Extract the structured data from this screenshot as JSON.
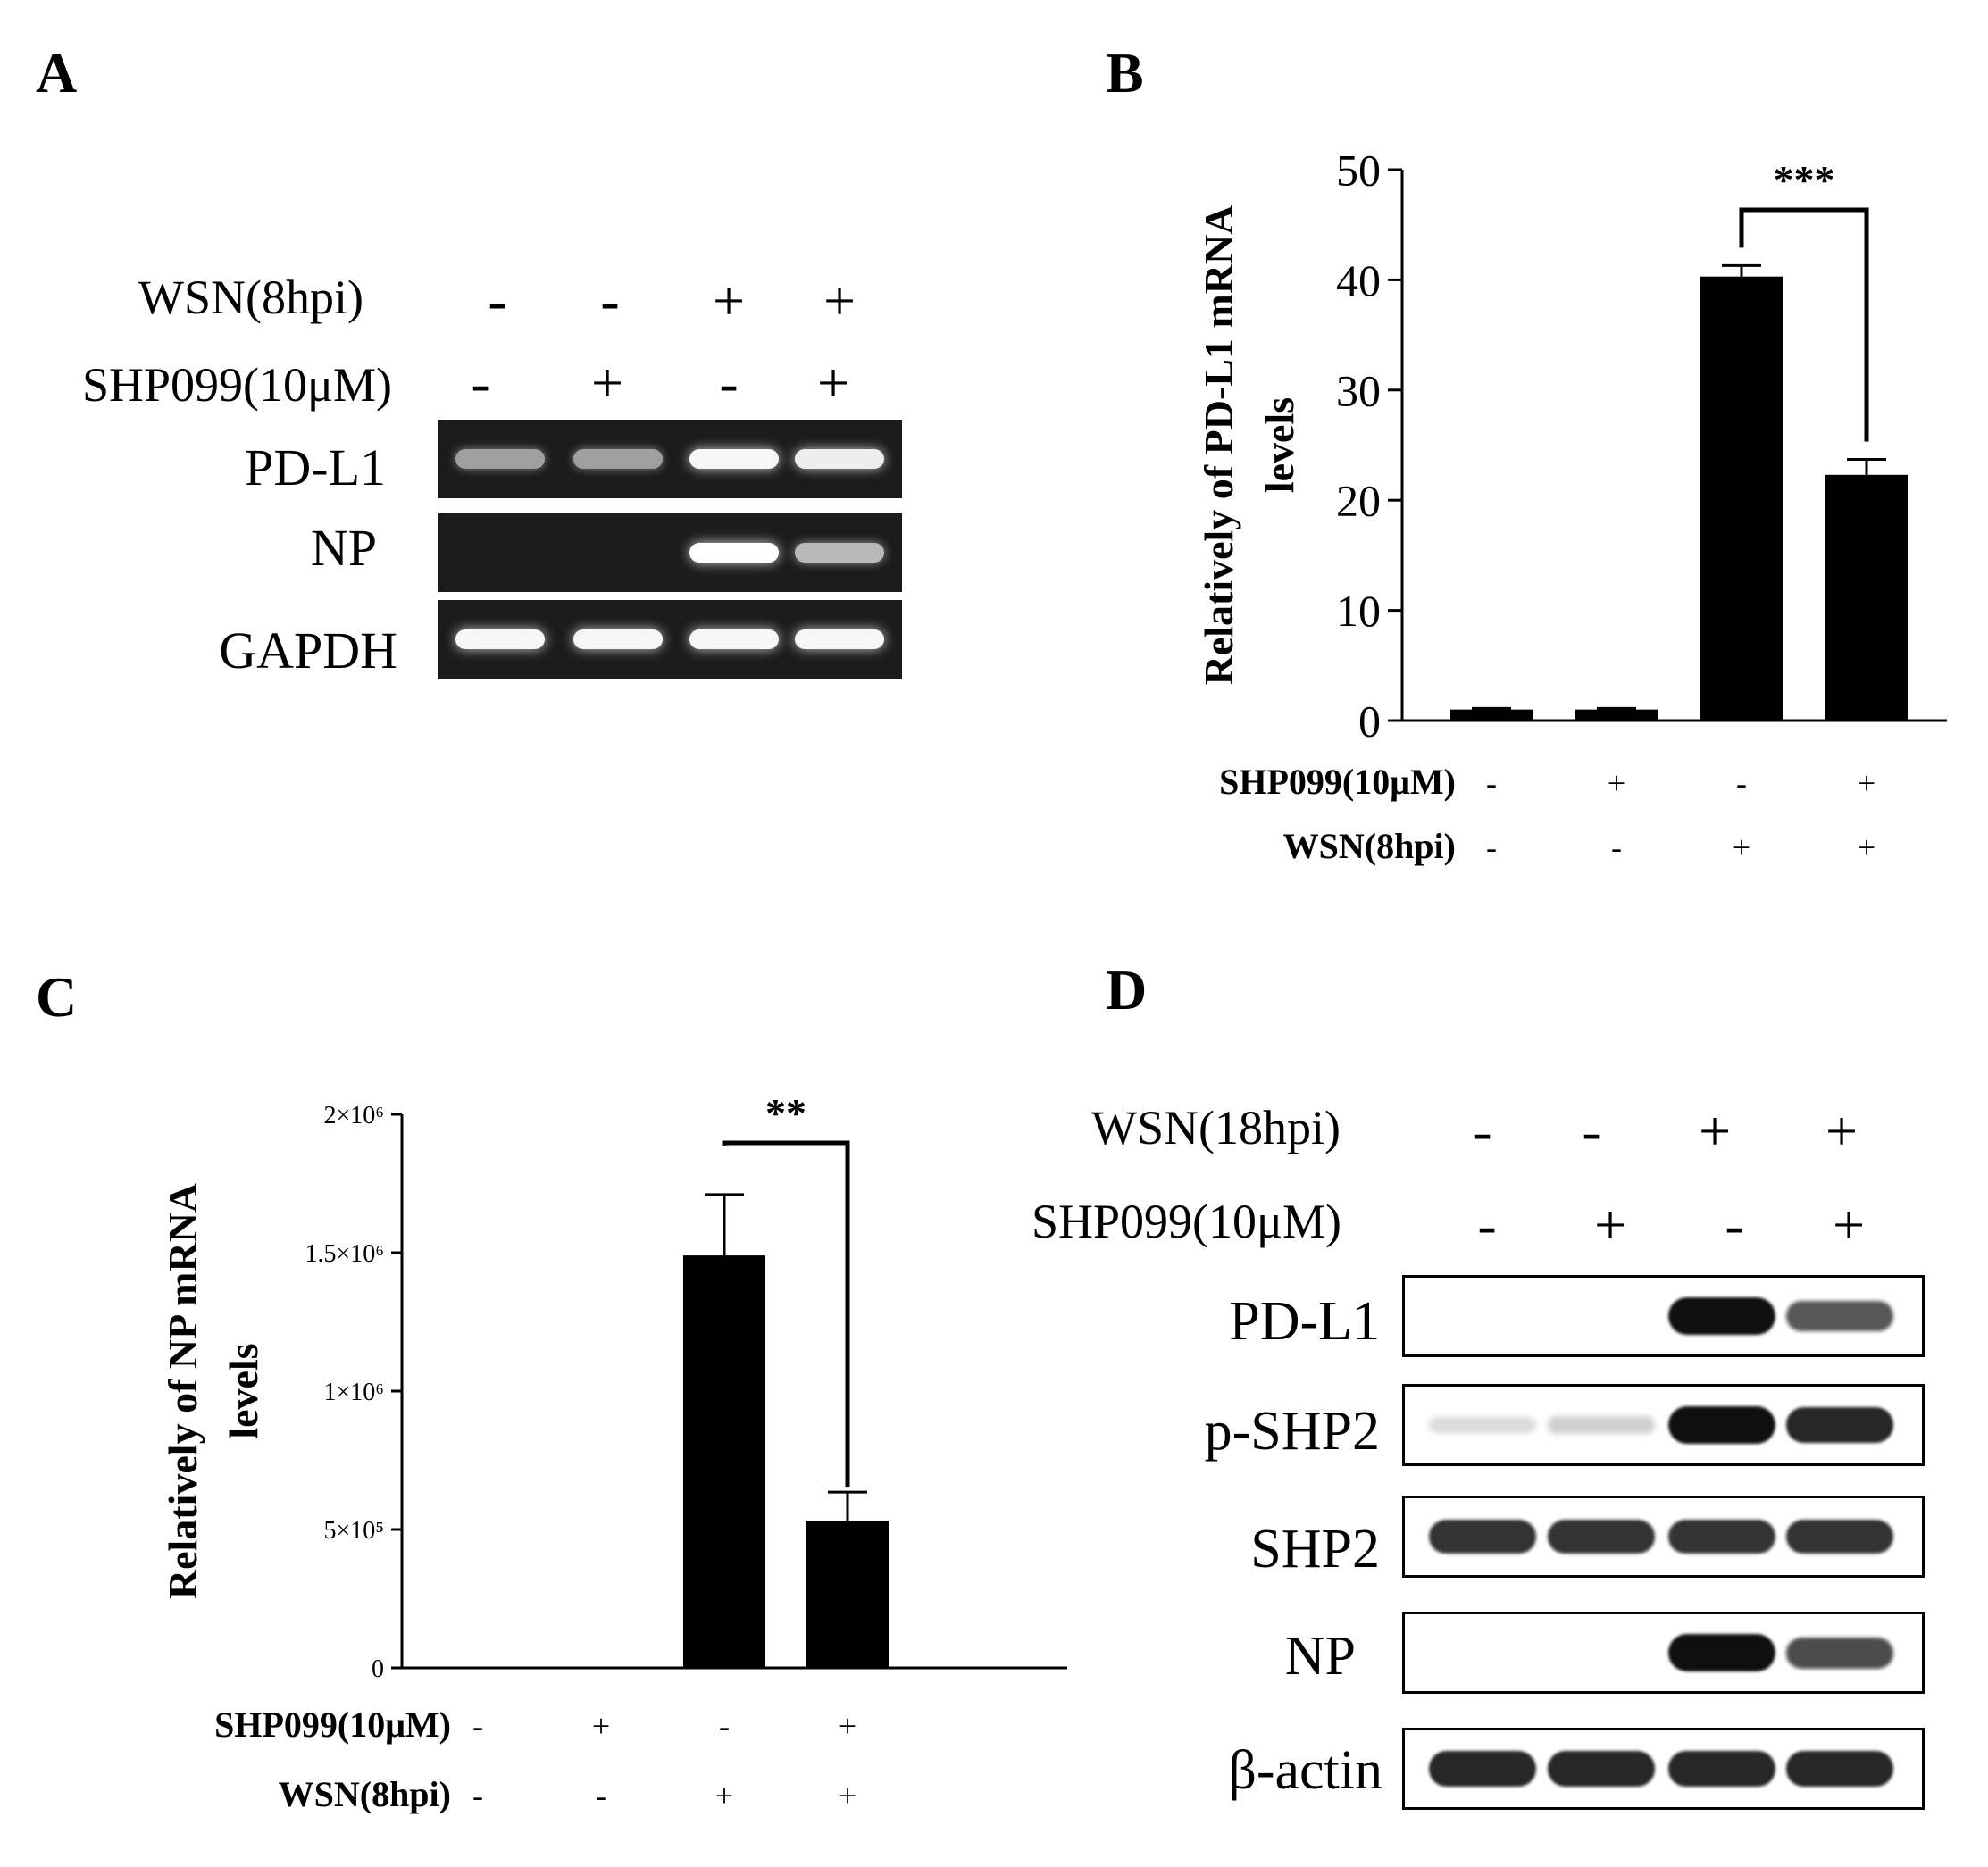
{
  "panels": {
    "A": "A",
    "B": "B",
    "C": "C",
    "D": "D"
  },
  "panel_a": {
    "conditions": [
      {
        "label": "WSN(8hpi)",
        "signs": [
          "-",
          "-",
          "+",
          "+"
        ]
      },
      {
        "label": "SHP099(10μM)",
        "signs": [
          "-",
          "+",
          "-",
          "+"
        ]
      }
    ],
    "rows": [
      {
        "label": "PD-L1",
        "intensity": [
          0.45,
          0.45,
          0.95,
          0.9
        ]
      },
      {
        "label": "NP",
        "intensity": [
          0,
          0,
          1.0,
          0.6
        ]
      },
      {
        "label": "GAPDH",
        "intensity": [
          0.95,
          0.95,
          0.95,
          0.95
        ]
      }
    ]
  },
  "panel_d": {
    "conditions": [
      {
        "label": "WSN(18hpi)",
        "signs": [
          "-",
          "-",
          "+",
          "+"
        ]
      },
      {
        "label": "SHP099(10μM)",
        "signs": [
          "-",
          "+",
          "-",
          "+"
        ]
      }
    ],
    "rows": [
      {
        "label": "PD-L1",
        "intensity": [
          0,
          0,
          1.0,
          0.7
        ]
      },
      {
        "label": "p-SHP2",
        "intensity": [
          0.15,
          0.2,
          1.0,
          0.9
        ]
      },
      {
        "label": "SHP2",
        "intensity": [
          0.85,
          0.85,
          0.85,
          0.85
        ]
      },
      {
        "label": "NP",
        "intensity": [
          0,
          0,
          1.0,
          0.75
        ]
      },
      {
        "label": "β-actin",
        "intensity": [
          0.9,
          0.9,
          0.9,
          0.9
        ]
      }
    ]
  },
  "chart_data": [
    {
      "panel": "B",
      "type": "bar",
      "ylabel": "Relatively of PD-L1 mRNA levels",
      "ylabel_lines": [
        "Relatively of PD-L1 mRNA",
        "levels"
      ],
      "ylim": [
        0,
        50
      ],
      "yticks": [
        0,
        10,
        20,
        30,
        40,
        50
      ],
      "ytick_labels": [
        "0",
        "10",
        "20",
        "30",
        "40",
        "50"
      ],
      "values": [
        1,
        1,
        40.3,
        22.3
      ],
      "errors": [
        0.1,
        0.1,
        1.0,
        1.4
      ],
      "bar_color": "#000000",
      "conditions": [
        {
          "label": "SHP099(10μM)",
          "signs": [
            "-",
            "+",
            "-",
            "+"
          ]
        },
        {
          "label": "WSN(8hpi)",
          "signs": [
            "-",
            "-",
            "+",
            "+"
          ]
        }
      ],
      "significance": {
        "from": 2,
        "to": 3,
        "label": "***"
      }
    },
    {
      "panel": "C",
      "type": "bar",
      "ylabel": "Relatively of NP mRNA levels",
      "ylabel_lines": [
        "Relatively of NP mRNA",
        "levels"
      ],
      "ylim": [
        0,
        2000000
      ],
      "yticks": [
        0,
        500000,
        1000000,
        1500000,
        2000000
      ],
      "ytick_labels": [
        "0",
        "5×10⁵",
        "1×10⁶",
        "1.5×10⁶",
        "2×10⁶"
      ],
      "values": [
        0,
        0,
        1490000,
        530000
      ],
      "errors": [
        0,
        0,
        220000,
        105000
      ],
      "bar_color": "#000000",
      "conditions": [
        {
          "label": "SHP099(10μM)",
          "signs": [
            "-",
            "+",
            "-",
            "+"
          ]
        },
        {
          "label": "WSN(8hpi)",
          "signs": [
            "-",
            "-",
            "+",
            "+"
          ]
        }
      ],
      "significance": {
        "from": 2,
        "to": 3,
        "label": "**"
      }
    }
  ]
}
